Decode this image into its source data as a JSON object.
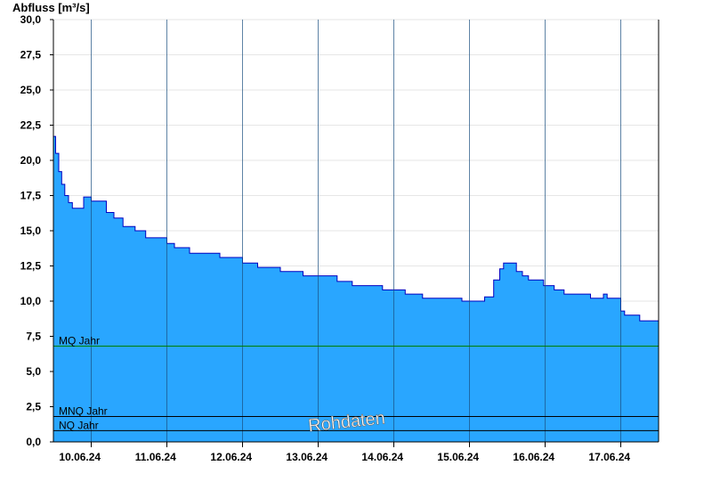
{
  "chart_data": {
    "type": "area",
    "ylabel": "Abfluss [m³/s]",
    "ylim": [
      0,
      30
    ],
    "yticks": [
      "0,0",
      "2,5",
      "5,0",
      "7,5",
      "10,0",
      "12,5",
      "15,0",
      "17,5",
      "20,0",
      "22,5",
      "25,0",
      "27,5",
      "30,0"
    ],
    "xlim_days": [
      -0.2,
      7.8
    ],
    "xticks": [
      "10.06.24",
      "11.06.24",
      "12.06.24",
      "13.06.24",
      "14.06.24",
      "15.06.24",
      "16.06.24",
      "17.06.24"
    ],
    "day_boundaries": [
      0.3,
      1.3,
      2.3,
      3.3,
      4.3,
      5.3,
      6.3,
      7.3
    ],
    "grid": true,
    "series": [
      {
        "color": "#29a6ff",
        "line_color": "#0000c0",
        "points": [
          [
            -0.2,
            21.7
          ],
          [
            -0.17,
            20.5
          ],
          [
            -0.13,
            19.2
          ],
          [
            -0.09,
            18.3
          ],
          [
            -0.05,
            17.5
          ],
          [
            0.0,
            17.0
          ],
          [
            0.05,
            16.6
          ],
          [
            0.15,
            16.6
          ],
          [
            0.2,
            17.4
          ],
          [
            0.3,
            17.1
          ],
          [
            0.4,
            17.1
          ],
          [
            0.5,
            16.3
          ],
          [
            0.6,
            15.9
          ],
          [
            0.72,
            15.3
          ],
          [
            0.85,
            15.3
          ],
          [
            0.88,
            15.0
          ],
          [
            1.0,
            15.0
          ],
          [
            1.02,
            14.5
          ],
          [
            1.25,
            14.5
          ],
          [
            1.3,
            14.1
          ],
          [
            1.4,
            13.8
          ],
          [
            1.55,
            13.8
          ],
          [
            1.6,
            13.4
          ],
          [
            1.95,
            13.4
          ],
          [
            2.0,
            13.1
          ],
          [
            2.25,
            13.1
          ],
          [
            2.3,
            12.7
          ],
          [
            2.5,
            12.4
          ],
          [
            2.7,
            12.4
          ],
          [
            2.8,
            12.1
          ],
          [
            3.05,
            12.1
          ],
          [
            3.1,
            11.8
          ],
          [
            3.15,
            11.8
          ],
          [
            3.5,
            11.8
          ],
          [
            3.55,
            11.4
          ],
          [
            3.7,
            11.4
          ],
          [
            3.75,
            11.1
          ],
          [
            4.1,
            11.1
          ],
          [
            4.15,
            10.8
          ],
          [
            4.4,
            10.8
          ],
          [
            4.45,
            10.5
          ],
          [
            4.63,
            10.5
          ],
          [
            4.68,
            10.2
          ],
          [
            5.15,
            10.2
          ],
          [
            5.2,
            10.0
          ],
          [
            5.45,
            10.0
          ],
          [
            5.5,
            10.3
          ],
          [
            5.62,
            11.5
          ],
          [
            5.7,
            12.3
          ],
          [
            5.75,
            12.7
          ],
          [
            5.85,
            12.7
          ],
          [
            5.92,
            12.1
          ],
          [
            6.0,
            11.8
          ],
          [
            6.08,
            11.5
          ],
          [
            6.23,
            11.5
          ],
          [
            6.28,
            11.1
          ],
          [
            6.36,
            11.1
          ],
          [
            6.42,
            10.8
          ],
          [
            6.5,
            10.8
          ],
          [
            6.55,
            10.5
          ],
          [
            6.85,
            10.5
          ],
          [
            6.9,
            10.2
          ],
          [
            7.02,
            10.2
          ],
          [
            7.07,
            10.5
          ],
          [
            7.12,
            10.2
          ],
          [
            7.25,
            10.2
          ],
          [
            7.3,
            9.3
          ],
          [
            7.35,
            9.0
          ],
          [
            7.5,
            9.0
          ],
          [
            7.55,
            8.6
          ],
          [
            7.8,
            8.6
          ]
        ]
      }
    ],
    "reference_lines": [
      {
        "label": "MQ Jahr",
        "value": 6.8,
        "color": "#008000"
      },
      {
        "label": "MNQ Jahr",
        "value": 1.8,
        "color": "#000000"
      },
      {
        "label": "NQ Jahr",
        "value": 0.8,
        "color": "#000000"
      }
    ],
    "annotation": "Rohdaten"
  }
}
